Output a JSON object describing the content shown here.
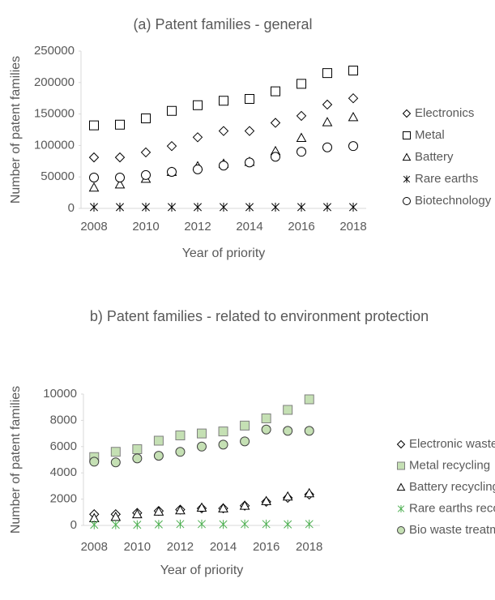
{
  "chart_data": [
    {
      "type": "scatter",
      "title": "(a) Patent families - general",
      "xlabel": "Year of priority",
      "ylabel": "Number of patent families",
      "x": [
        2008,
        2009,
        2010,
        2011,
        2012,
        2013,
        2014,
        2015,
        2016,
        2017,
        2018
      ],
      "xlim": [
        2007.5,
        2018.5
      ],
      "xticks": [
        2008,
        2010,
        2012,
        2014,
        2016,
        2018
      ],
      "ylim": [
        0,
        250000
      ],
      "yticks": [
        0,
        50000,
        100000,
        150000,
        200000,
        250000
      ],
      "legend": "right",
      "series": [
        {
          "name": "Electronics",
          "marker": "diamond",
          "color": "#000000",
          "fill": "#ffffff",
          "values": [
            81000,
            81000,
            89000,
            99000,
            113000,
            123000,
            123000,
            136000,
            147000,
            165000,
            175000
          ]
        },
        {
          "name": "Metal",
          "marker": "square",
          "color": "#000000",
          "fill": "#ffffff",
          "values": [
            132000,
            133000,
            143000,
            155000,
            164000,
            171000,
            174000,
            186000,
            198000,
            215000,
            219000
          ]
        },
        {
          "name": "Battery",
          "marker": "triangle",
          "color": "#000000",
          "fill": "#ffffff",
          "values": [
            33000,
            38000,
            47000,
            58000,
            67000,
            71000,
            74000,
            91000,
            112000,
            137000,
            145000
          ]
        },
        {
          "name": "Rare earths",
          "marker": "asterisk",
          "color": "#000000",
          "fill": "#ffffff",
          "values": [
            2000,
            2000,
            2000,
            2000,
            2000,
            2000,
            2000,
            2000,
            2000,
            2000,
            2000
          ]
        },
        {
          "name": "Biotechnology",
          "marker": "circle",
          "color": "#000000",
          "fill": "#ffffff",
          "values": [
            49000,
            49000,
            53000,
            58000,
            62000,
            68000,
            73000,
            82000,
            90000,
            97000,
            99000
          ]
        }
      ]
    },
    {
      "type": "scatter",
      "title": "b) Patent families - related to environment protection",
      "xlabel": "Year of priority",
      "ylabel": "Number of patent families",
      "x": [
        2008,
        2009,
        2010,
        2011,
        2012,
        2013,
        2014,
        2015,
        2016,
        2017,
        2018
      ],
      "xlim": [
        2007.5,
        2018.5
      ],
      "xticks": [
        2008,
        2010,
        2012,
        2014,
        2016,
        2018
      ],
      "ylim": [
        0,
        10000
      ],
      "yticks": [
        0,
        2000,
        4000,
        6000,
        8000,
        10000
      ],
      "legend": "right",
      "series": [
        {
          "name": "Electronic waste",
          "marker": "diamond",
          "color": "#000000",
          "fill": "#ffffff",
          "values": [
            850,
            850,
            950,
            1100,
            1200,
            1300,
            1300,
            1500,
            1800,
            2100,
            2350
          ]
        },
        {
          "name": "Metal recycling",
          "marker": "square",
          "color": "#7f7f7f",
          "fill": "#c5e0b4",
          "values": [
            5200,
            5600,
            5800,
            6450,
            6850,
            7000,
            7150,
            7600,
            8150,
            8800,
            9600
          ]
        },
        {
          "name": "Battery recycling",
          "marker": "triangle",
          "color": "#000000",
          "fill": "#ffffff",
          "values": [
            550,
            650,
            850,
            1050,
            1150,
            1350,
            1300,
            1500,
            1850,
            2200,
            2450
          ]
        },
        {
          "name": "Rare earths recovery",
          "marker": "asterisk",
          "color": "#4caf50",
          "fill": "#ffffff",
          "values": [
            50,
            50,
            50,
            80,
            100,
            100,
            80,
            100,
            100,
            80,
            100
          ]
        },
        {
          "name": "Bio waste treatment",
          "marker": "circle",
          "color": "#404040",
          "fill": "#c5e0b4",
          "values": [
            4850,
            4800,
            5100,
            5300,
            5600,
            6000,
            6150,
            6400,
            7300,
            7200,
            7200
          ]
        }
      ]
    }
  ]
}
